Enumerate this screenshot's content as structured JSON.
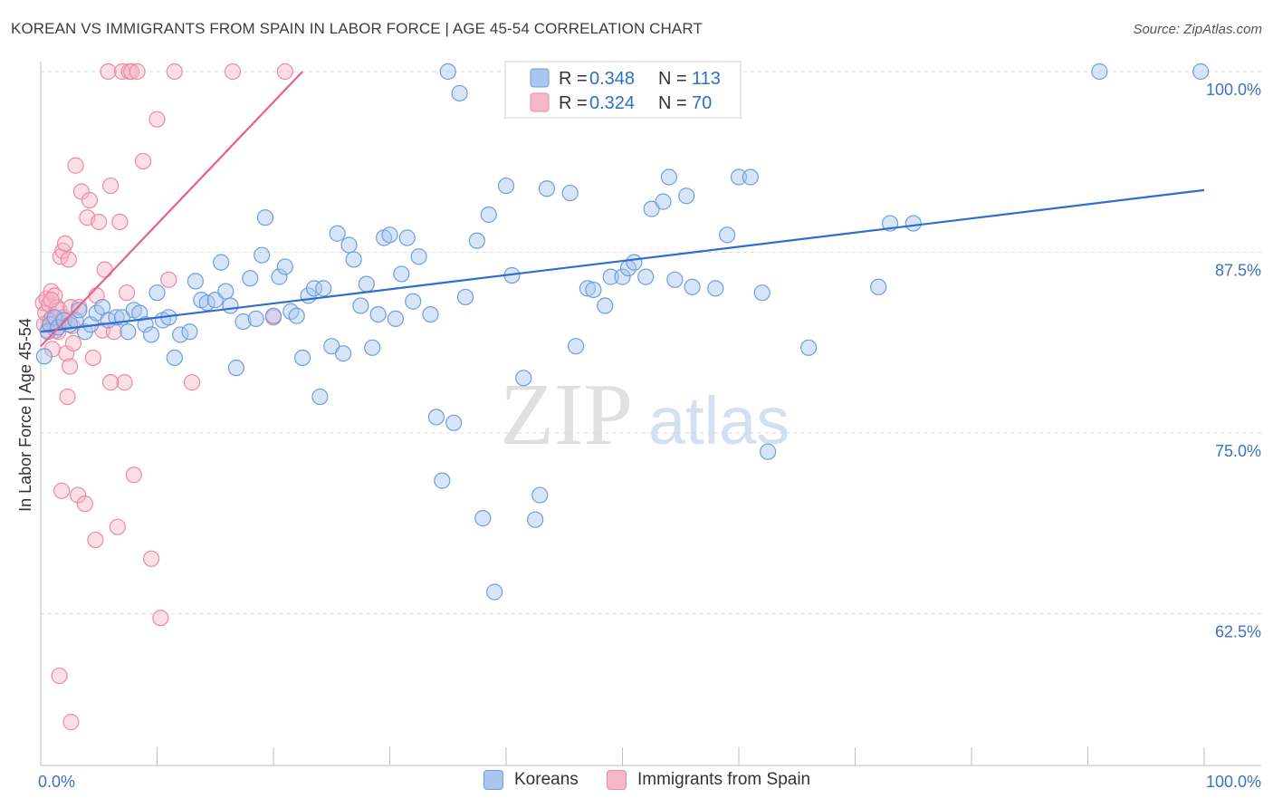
{
  "title": "KOREAN VS IMMIGRANTS FROM SPAIN IN LABOR FORCE | AGE 45-54 CORRELATION CHART",
  "source": "Source: ZipAtlas.com",
  "watermark": {
    "zip": "ZIP",
    "atlas": "atlas"
  },
  "colors": {
    "blue_fill": "#a9c6ef",
    "blue_stroke": "#6f9fdb",
    "blue_line": "#2e6ecf",
    "pink_fill": "#f6b8c8",
    "pink_stroke": "#ec8aa6",
    "pink_line": "#e8608a",
    "grid": "#d9d9d9",
    "axis_label": "#3c72c4"
  },
  "legend": {
    "rows": [
      {
        "r_label": "R =",
        "r_value": "0.348",
        "n_label": "N =",
        "n_value": "113"
      },
      {
        "r_label": "R =",
        "r_value": "0.324",
        "n_label": "N =",
        "n_value": "70"
      }
    ]
  },
  "bottom_legend": [
    "Koreans",
    "Immigrants from Spain"
  ],
  "chart_data": {
    "type": "scatter",
    "title": "KOREAN VS IMMIGRANTS FROM SPAIN IN LABOR FORCE | AGE 45-54 CORRELATION CHART",
    "ylabel": "In Labor Force | Age 45-54",
    "xlabel": "",
    "xlim": [
      0,
      100
    ],
    "ylim": [
      52,
      100
    ],
    "x_tick_labels": [
      "0.0%",
      "100.0%"
    ],
    "y_ticks": [
      62.5,
      75.0,
      87.5,
      100.0
    ],
    "y_tick_labels": [
      "62.5%",
      "75.0%",
      "87.5%",
      "100.0%"
    ],
    "grid": true,
    "legend_position": "top-center",
    "series": [
      {
        "name": "Koreans",
        "R": 0.348,
        "N": 113,
        "trend": {
          "x": [
            0,
            100
          ],
          "y": [
            82.0,
            91.8
          ]
        },
        "points": [
          [
            0.3,
            80.3
          ],
          [
            0.6,
            82.0
          ],
          [
            0.8,
            82.5
          ],
          [
            1.2,
            83.0
          ],
          [
            1.5,
            82.3
          ],
          [
            2.0,
            82.8
          ],
          [
            2.5,
            82.5
          ],
          [
            3.0,
            82.8
          ],
          [
            3.3,
            83.5
          ],
          [
            3.8,
            82.0
          ],
          [
            4.3,
            82.5
          ],
          [
            4.8,
            83.3
          ],
          [
            5.3,
            83.7
          ],
          [
            5.8,
            82.8
          ],
          [
            6.5,
            83.0
          ],
          [
            7.0,
            83.0
          ],
          [
            7.5,
            82.0
          ],
          [
            8.0,
            83.5
          ],
          [
            8.5,
            83.3
          ],
          [
            9.0,
            82.5
          ],
          [
            9.5,
            81.8
          ],
          [
            10.0,
            84.7
          ],
          [
            10.5,
            82.8
          ],
          [
            11.0,
            83.0
          ],
          [
            11.5,
            80.2
          ],
          [
            12.0,
            81.8
          ],
          [
            12.8,
            82.0
          ],
          [
            13.3,
            85.5
          ],
          [
            13.8,
            84.2
          ],
          [
            14.3,
            84.0
          ],
          [
            15.0,
            84.2
          ],
          [
            15.5,
            86.8
          ],
          [
            15.9,
            84.8
          ],
          [
            16.3,
            83.8
          ],
          [
            16.8,
            79.5
          ],
          [
            17.4,
            82.7
          ],
          [
            18.0,
            85.7
          ],
          [
            18.5,
            82.9
          ],
          [
            19.0,
            87.3
          ],
          [
            19.3,
            89.9
          ],
          [
            20.0,
            83.1
          ],
          [
            20.5,
            85.8
          ],
          [
            21.0,
            86.5
          ],
          [
            21.5,
            83.4
          ],
          [
            22.0,
            83.1
          ],
          [
            22.5,
            80.2
          ],
          [
            23.0,
            84.5
          ],
          [
            23.5,
            85.0
          ],
          [
            24.0,
            77.5
          ],
          [
            24.3,
            85.0
          ],
          [
            25.0,
            81.0
          ],
          [
            25.5,
            88.8
          ],
          [
            26.0,
            80.5
          ],
          [
            26.5,
            88.0
          ],
          [
            26.9,
            87.0
          ],
          [
            27.5,
            83.8
          ],
          [
            28.0,
            85.3
          ],
          [
            28.5,
            80.9
          ],
          [
            29.0,
            83.2
          ],
          [
            29.5,
            88.5
          ],
          [
            30.0,
            88.7
          ],
          [
            30.5,
            82.9
          ],
          [
            31.0,
            86.0
          ],
          [
            31.5,
            88.5
          ],
          [
            32.0,
            84.1
          ],
          [
            32.5,
            87.2
          ],
          [
            33.5,
            83.2
          ],
          [
            34.0,
            76.1
          ],
          [
            34.5,
            71.7
          ],
          [
            35.0,
            100.0
          ],
          [
            35.5,
            75.7
          ],
          [
            36.0,
            98.5
          ],
          [
            36.5,
            84.4
          ],
          [
            37.5,
            88.3
          ],
          [
            38.0,
            69.1
          ],
          [
            38.5,
            90.1
          ],
          [
            39.0,
            64.0
          ],
          [
            40.0,
            92.1
          ],
          [
            40.5,
            85.9
          ],
          [
            41.0,
            100.0
          ],
          [
            41.5,
            78.8
          ],
          [
            42.5,
            69.0
          ],
          [
            42.9,
            70.7
          ],
          [
            43.5,
            91.9
          ],
          [
            45.5,
            91.6
          ],
          [
            46.0,
            81.0
          ],
          [
            47.0,
            85.0
          ],
          [
            47.5,
            84.9
          ],
          [
            48.5,
            83.8
          ],
          [
            49.0,
            85.8
          ],
          [
            50.0,
            85.8
          ],
          [
            50.5,
            86.4
          ],
          [
            51.0,
            86.8
          ],
          [
            52.0,
            85.8
          ],
          [
            52.5,
            90.5
          ],
          [
            53.5,
            91.0
          ],
          [
            54.0,
            92.7
          ],
          [
            54.5,
            85.6
          ],
          [
            55.5,
            91.4
          ],
          [
            56.0,
            85.1
          ],
          [
            58.0,
            85.0
          ],
          [
            59.0,
            88.7
          ],
          [
            60.0,
            92.7
          ],
          [
            61.0,
            92.7
          ],
          [
            62.0,
            84.7
          ],
          [
            62.5,
            73.7
          ],
          [
            66.0,
            80.9
          ],
          [
            72.0,
            85.1
          ],
          [
            73.0,
            89.5
          ],
          [
            75.0,
            89.5
          ],
          [
            91.0,
            100.0
          ],
          [
            99.7,
            100.0
          ]
        ]
      },
      {
        "name": "Immigrants from Spain",
        "R": 0.324,
        "N": 70,
        "trend": {
          "x": [
            0,
            22.5
          ],
          "y": [
            81.0,
            100.0
          ]
        },
        "points": [
          [
            0.2,
            84.0
          ],
          [
            0.3,
            82.5
          ],
          [
            0.4,
            83.3
          ],
          [
            0.5,
            84.3
          ],
          [
            0.6,
            82.1
          ],
          [
            0.7,
            83.9
          ],
          [
            0.8,
            82.8
          ],
          [
            0.9,
            84.8
          ],
          [
            1.0,
            83.0
          ],
          [
            1.1,
            82.3
          ],
          [
            1.2,
            84.5
          ],
          [
            1.3,
            82.9
          ],
          [
            1.4,
            83.7
          ],
          [
            1.5,
            82.0
          ],
          [
            1.6,
            83.5
          ],
          [
            1.7,
            87.2
          ],
          [
            1.8,
            82.6
          ],
          [
            1.9,
            87.6
          ],
          [
            2.0,
            83.0
          ],
          [
            2.1,
            88.1
          ],
          [
            2.2,
            80.5
          ],
          [
            2.3,
            77.5
          ],
          [
            2.4,
            82.8
          ],
          [
            2.5,
            79.6
          ],
          [
            2.6,
            83.7
          ],
          [
            2.7,
            82.4
          ],
          [
            2.8,
            81.2
          ],
          [
            3.0,
            93.5
          ],
          [
            3.2,
            70.7
          ],
          [
            3.5,
            91.7
          ],
          [
            3.8,
            70.1
          ],
          [
            4.0,
            89.9
          ],
          [
            4.2,
            91.1
          ],
          [
            4.5,
            80.2
          ],
          [
            4.7,
            67.6
          ],
          [
            5.0,
            89.6
          ],
          [
            5.3,
            82.1
          ],
          [
            5.5,
            86.3
          ],
          [
            5.8,
            100.0
          ],
          [
            6.0,
            92.1
          ],
          [
            6.3,
            82.0
          ],
          [
            6.6,
            68.5
          ],
          [
            6.8,
            89.6
          ],
          [
            7.0,
            100.0
          ],
          [
            7.2,
            78.5
          ],
          [
            7.4,
            84.7
          ],
          [
            7.6,
            100.0
          ],
          [
            7.8,
            100.0
          ],
          [
            8.0,
            72.1
          ],
          [
            8.3,
            100.0
          ],
          [
            8.8,
            93.8
          ],
          [
            9.5,
            66.3
          ],
          [
            10.0,
            96.7
          ],
          [
            10.3,
            62.2
          ],
          [
            11.0,
            85.6
          ],
          [
            11.5,
            100.0
          ],
          [
            13.0,
            78.5
          ],
          [
            16.5,
            100.0
          ],
          [
            20.0,
            83.0
          ],
          [
            21.0,
            100.0
          ],
          [
            1.6,
            58.2
          ],
          [
            2.6,
            55.0
          ],
          [
            1.8,
            71.0
          ],
          [
            2.4,
            87.0
          ],
          [
            0.9,
            84.2
          ],
          [
            1.3,
            82.1
          ],
          [
            6.0,
            78.5
          ],
          [
            4.8,
            84.5
          ],
          [
            3.3,
            83.7
          ],
          [
            1.0,
            80.8
          ]
        ]
      }
    ]
  }
}
